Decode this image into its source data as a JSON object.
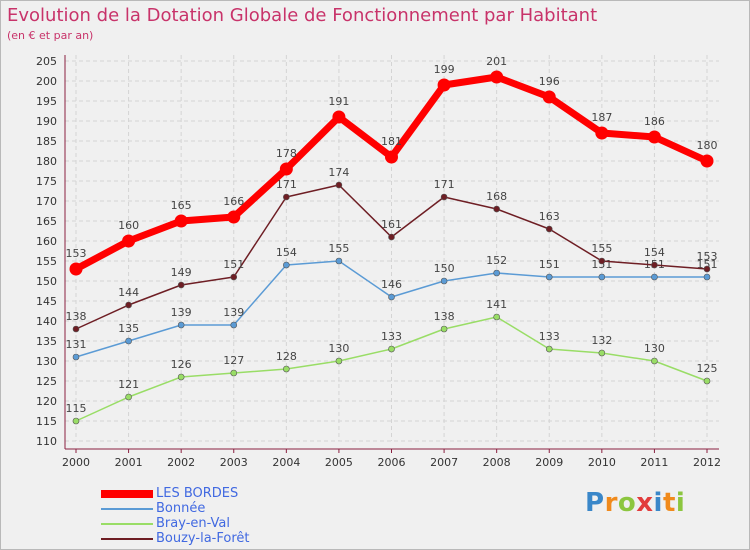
{
  "header": {
    "title": "Evolution de la Dotation Globale de Fonctionnement par Habitant",
    "subtitle": "(en € et par an)"
  },
  "brand": {
    "letters": [
      "P",
      "r",
      "o",
      "x",
      "i",
      "t",
      "i"
    ],
    "colors": [
      "#3a87c9",
      "#f08a1c",
      "#8cc63f",
      "#e23c3c",
      "#3a87c9",
      "#f08a1c",
      "#8cc63f"
    ]
  },
  "legend": {
    "items": [
      {
        "label": "LES BORDES",
        "color": "#ff0000"
      },
      {
        "label": "Bonnée",
        "color": "#5b9bd5"
      },
      {
        "label": "Bray-en-Val",
        "color": "#99dd66"
      },
      {
        "label": "Bouzy-la-Forêt",
        "color": "#6e1e24"
      }
    ]
  },
  "chart_data": {
    "type": "line",
    "title": "Evolution de la Dotation Globale de Fonctionnement par Habitant",
    "subtitle": "(en € et par an)",
    "x": [
      "2000",
      "2001",
      "2002",
      "2003",
      "2004",
      "2005",
      "2006",
      "2007",
      "2008",
      "2009",
      "2010",
      "2011",
      "2012"
    ],
    "ylim": [
      110,
      205
    ],
    "yticks": [
      110,
      115,
      120,
      125,
      130,
      135,
      140,
      145,
      150,
      155,
      160,
      165,
      170,
      175,
      180,
      185,
      190,
      195,
      200,
      205
    ],
    "grid": true,
    "legend_position": "bottom-left",
    "series": [
      {
        "name": "LES BORDES",
        "color": "#ff0000",
        "values": [
          153,
          160,
          165,
          166,
          178,
          191,
          181,
          199,
          201,
          196,
          187,
          186,
          180
        ]
      },
      {
        "name": "Bonnée",
        "color": "#5b9bd5",
        "values": [
          131,
          135,
          139,
          139,
          154,
          155,
          146,
          150,
          152,
          151,
          151,
          151,
          151
        ]
      },
      {
        "name": "Bray-en-Val",
        "color": "#99dd66",
        "values": [
          115,
          121,
          126,
          127,
          128,
          130,
          133,
          138,
          141,
          133,
          132,
          130,
          125
        ]
      },
      {
        "name": "Bouzy-la-Forêt",
        "color": "#6e1e24",
        "values": [
          138,
          144,
          149,
          151,
          171,
          174,
          161,
          171,
          168,
          163,
          155,
          154,
          153
        ]
      }
    ]
  }
}
